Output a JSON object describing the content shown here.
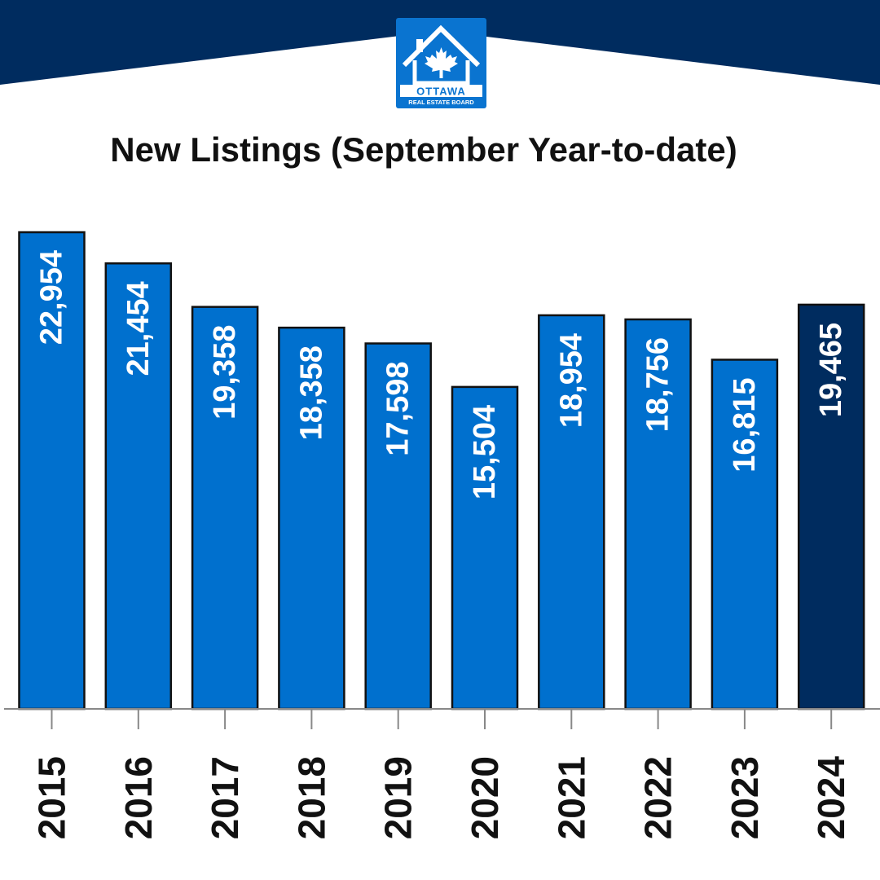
{
  "logo": {
    "name": "OTTAWA",
    "subtitle": "REAL ESTATE BOARD"
  },
  "colors": {
    "banner": "#002c5f",
    "bar": "#0070ce",
    "bar_highlight": "#002c5f",
    "logo_bg": "#0a74d0"
  },
  "chart_data": {
    "type": "bar",
    "title": "New Listings (September Year-to-date)",
    "categories": [
      "2015",
      "2016",
      "2017",
      "2018",
      "2019",
      "2020",
      "2021",
      "2022",
      "2023",
      "2024"
    ],
    "values": [
      22954,
      21454,
      19358,
      18358,
      17598,
      15504,
      18954,
      18756,
      16815,
      19465
    ],
    "value_labels": [
      "22,954",
      "21,454",
      "19,358",
      "18,358",
      "17,598",
      "15,504",
      "18,954",
      "18,756",
      "16,815",
      "19,465"
    ],
    "highlighted_category": "2024",
    "xlabel": "",
    "ylabel": "",
    "ylim": [
      0,
      23000
    ],
    "grid": false
  }
}
